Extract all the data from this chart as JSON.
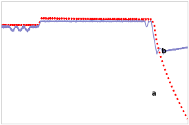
{
  "background_color": "#ffffff",
  "grid_color": "#cccccc",
  "line_blue_color": "#8888cc",
  "line_red_color": "#ff0000",
  "label_a": "a",
  "label_b": "b",
  "ylim": [
    -1.05,
    0.25
  ],
  "xlim": [
    0,
    1
  ]
}
